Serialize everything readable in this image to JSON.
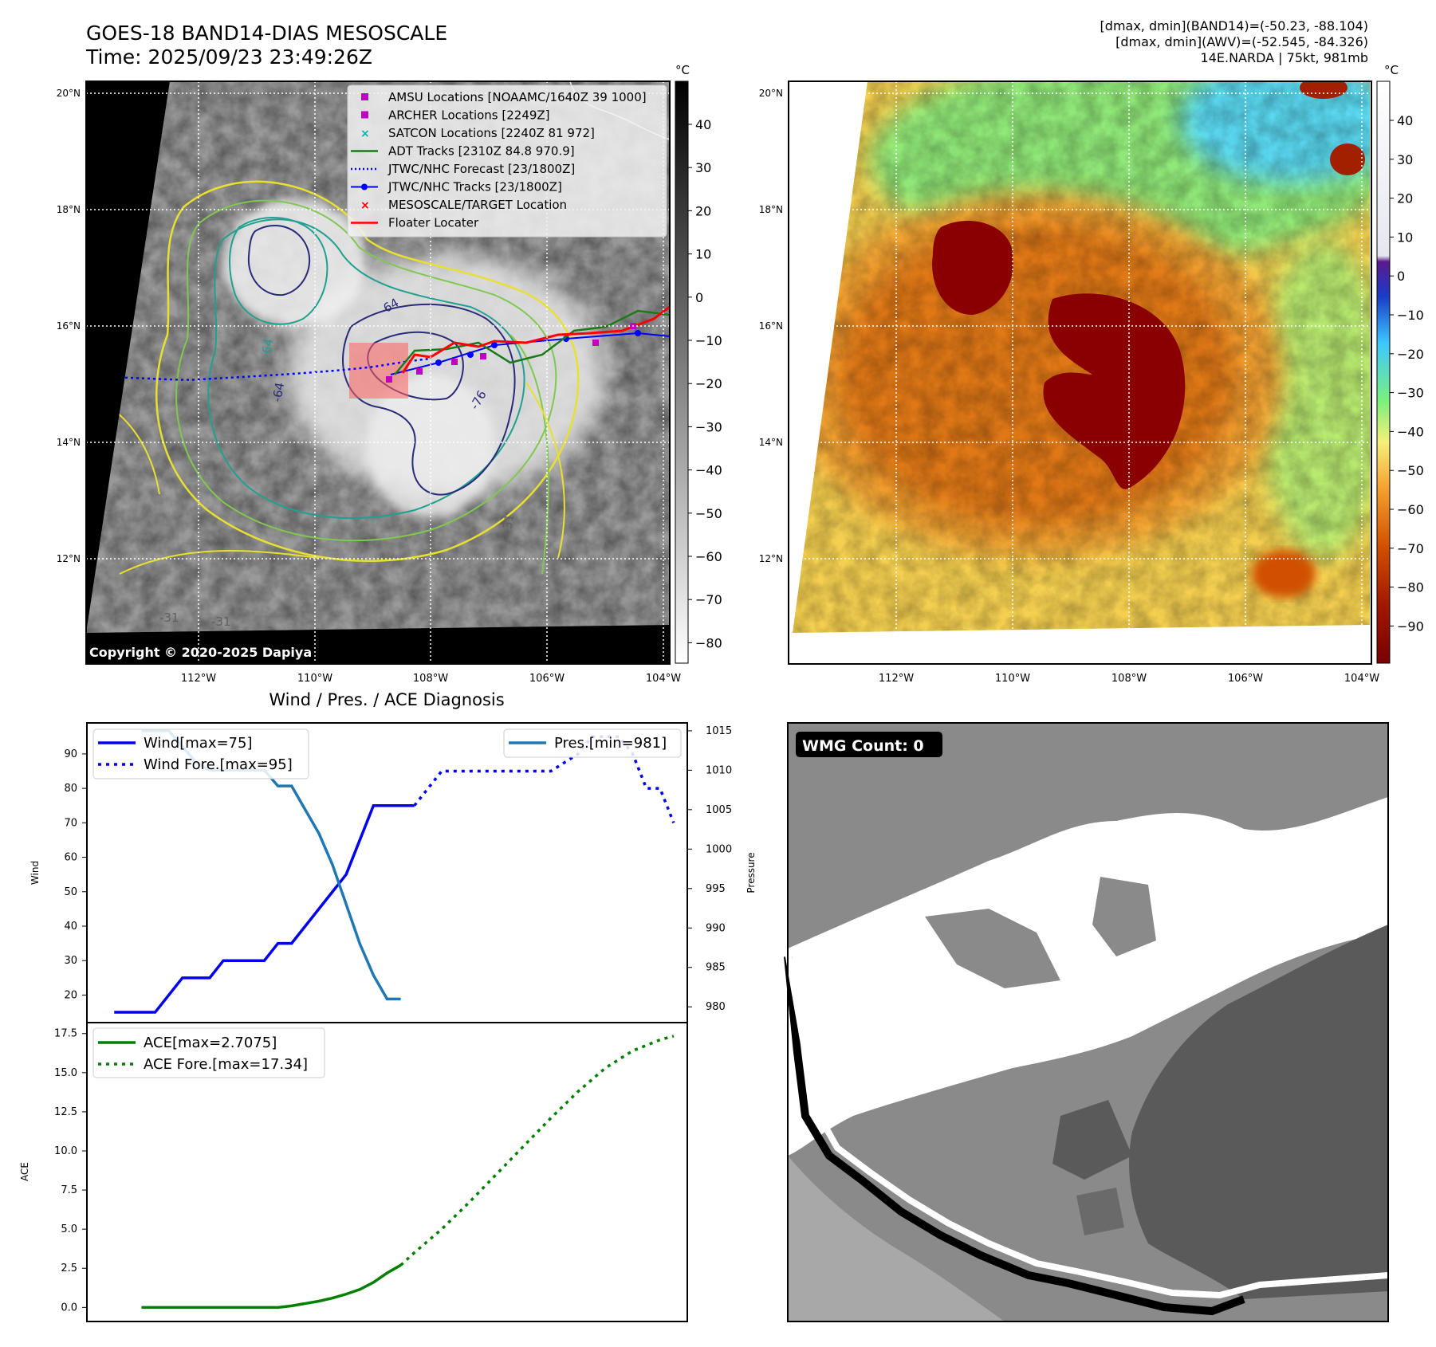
{
  "header": {
    "title": "GOES-18 BAND14-DIAS MESOSCALE",
    "time": "Time: 2025/09/23 23:49:26Z",
    "stats_line1": "[dmax, dmin](BAND14)=(-50.23, -88.104)",
    "stats_line2": "[dmax, dmin](AWV)=(-52.545, -84.326)",
    "storm_line": "14E.NARDA | 75kt, 981mb"
  },
  "map": {
    "lat_labels": [
      "20°N",
      "18°N",
      "16°N",
      "14°N",
      "12°N"
    ],
    "lon_labels": [
      "112°W",
      "110°W",
      "108°W",
      "106°W",
      "104°W"
    ],
    "copyright": "Copyright © 2020-2025 Dapiya",
    "contour_labels": [
      "-64",
      "-64",
      "-76",
      "-64",
      "-31",
      "-31",
      "-31"
    ],
    "legend": [
      {
        "label": "AMSU Locations [NOAAMC/1640Z 39 1000]",
        "color": "#c000c0",
        "marker": "square"
      },
      {
        "label": "ARCHER Locations [2249Z]",
        "color": "#c000c0",
        "marker": "square"
      },
      {
        "label": "SATCON Locations [2240Z 81 972]",
        "color": "#00b0b0",
        "marker": "x"
      },
      {
        "label": "ADT Tracks [2310Z 84.8 970.9]",
        "color": "#1a7a1a",
        "marker": "line"
      },
      {
        "label": "JTWC/NHC Forecast [23/1800Z]",
        "color": "#0000ff",
        "marker": "dotted"
      },
      {
        "label": "JTWC/NHC Tracks [23/1800Z]",
        "color": "#0000ff",
        "marker": "line-dot"
      },
      {
        "label": "MESOSCALE/TARGET Location",
        "color": "#ff0000",
        "marker": "x"
      },
      {
        "label": "Floater Locater",
        "color": "#ff0000",
        "marker": "line"
      }
    ]
  },
  "colorbars": {
    "unit": "°C",
    "left_ticks": [
      "40",
      "30",
      "20",
      "10",
      "0",
      "−10",
      "−20",
      "−30",
      "−40",
      "−50",
      "−60",
      "−70",
      "−80"
    ],
    "right_ticks": [
      "40",
      "30",
      "20",
      "10",
      "0",
      "−10",
      "−20",
      "−30",
      "−40",
      "−50",
      "−60",
      "−70",
      "−80",
      "−90"
    ]
  },
  "wmg": {
    "label": "WMG Count: 0"
  },
  "chart_data": [
    {
      "type": "line",
      "title": "Wind / Pres. / ACE Diagnosis",
      "ylabel": "Wind",
      "ylabel_right": "Pressure",
      "ylim": [
        12,
        99
      ],
      "ylim_right": [
        978,
        1016
      ],
      "yticks": [
        20,
        30,
        40,
        50,
        60,
        70,
        80,
        90
      ],
      "yticks_right": [
        980,
        985,
        990,
        995,
        1000,
        1005,
        1010,
        1015
      ],
      "xlim": [
        -2,
        42
      ],
      "series": [
        {
          "name": "Wind[max=75]",
          "style": "solid",
          "color": "#0000ee",
          "axis": "left",
          "x": [
            0,
            1,
            2,
            3,
            4,
            5,
            6,
            7,
            8,
            9,
            10,
            11,
            12,
            13,
            14,
            15,
            16,
            17,
            18,
            19,
            20,
            21,
            22
          ],
          "values": [
            15,
            15,
            15,
            15,
            20,
            25,
            25,
            25,
            30,
            30,
            30,
            30,
            35,
            35,
            40,
            45,
            50,
            55,
            65,
            75,
            75,
            75,
            75
          ]
        },
        {
          "name": "Wind Fore.[max=95]",
          "style": "dotted",
          "color": "#0000ee",
          "axis": "left",
          "x": [
            22,
            23,
            24,
            26,
            28,
            30,
            32,
            34,
            35,
            36,
            37,
            38,
            39,
            40,
            41
          ],
          "values": [
            75,
            80,
            85,
            85,
            85,
            85,
            85,
            90,
            95,
            95,
            95,
            90,
            80,
            80,
            70
          ]
        },
        {
          "name": "Pres.[min=981]",
          "style": "solid",
          "color": "#1f77b4",
          "axis": "right",
          "x": [
            2,
            3,
            4,
            5,
            6,
            7,
            8,
            9,
            10,
            11,
            12,
            13,
            14,
            15,
            16,
            17,
            18,
            19,
            20,
            21
          ],
          "values": [
            1015,
            1015,
            1015,
            1013,
            1011,
            1010,
            1010,
            1010,
            1010,
            1010,
            1008,
            1008,
            1005,
            1002,
            998,
            993,
            988,
            984,
            981,
            981
          ]
        }
      ],
      "legend_left": [
        "Wind[max=75]",
        "Wind Fore.[max=95]"
      ],
      "legend_right": [
        "Pres.[min=981]"
      ]
    },
    {
      "type": "line",
      "ylabel": "ACE",
      "ylim": [
        -0.9,
        18.2
      ],
      "yticks": [
        0.0,
        2.5,
        5.0,
        7.5,
        10.0,
        12.5,
        15.0,
        17.5
      ],
      "ytick_labels": [
        "0.0",
        "2.5",
        "5.0",
        "7.5",
        "10.0",
        "12.5",
        "15.0",
        "17.5"
      ],
      "xlim": [
        -2,
        42
      ],
      "series": [
        {
          "name": "ACE[max=2.7075]",
          "style": "solid",
          "color": "#008000",
          "x": [
            2,
            4,
            6,
            8,
            10,
            12,
            13,
            14,
            15,
            16,
            17,
            18,
            19,
            20,
            21
          ],
          "values": [
            0,
            0,
            0,
            0,
            0,
            0,
            0.1,
            0.25,
            0.4,
            0.6,
            0.85,
            1.15,
            1.6,
            2.2,
            2.7
          ]
        },
        {
          "name": "ACE Fore.[max=17.34]",
          "style": "dotted",
          "color": "#008000",
          "x": [
            21,
            22,
            24,
            26,
            28,
            30,
            32,
            34,
            36,
            38,
            40,
            41
          ],
          "values": [
            2.7,
            3.5,
            5.0,
            6.7,
            8.5,
            10.3,
            12.1,
            13.8,
            15.3,
            16.4,
            17.1,
            17.34
          ]
        }
      ]
    }
  ]
}
